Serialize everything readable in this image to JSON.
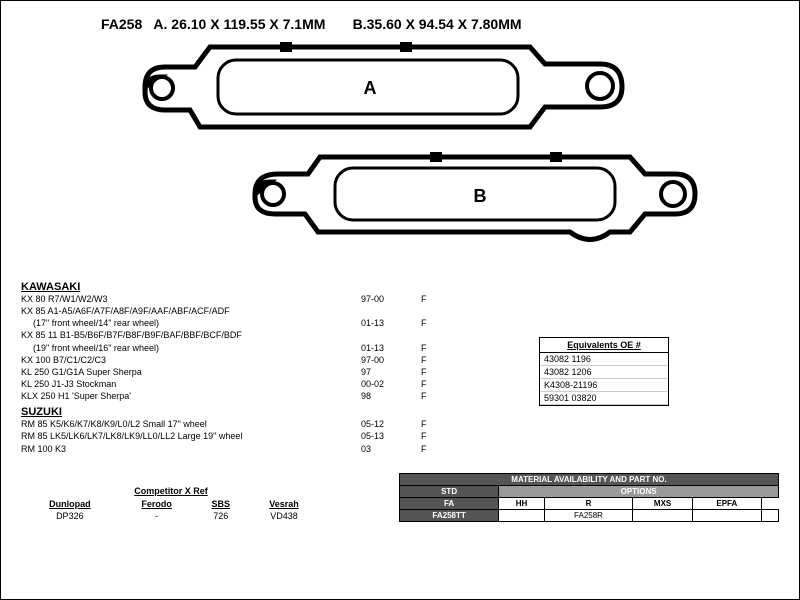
{
  "header": {
    "part_no": "FA258",
    "dim_a": "A. 26.10 X 119.55 X 7.1MM",
    "dim_b": "B.35.60 X 94.54 X 7.80MM"
  },
  "diagram": {
    "label_a": "A",
    "label_b": "B",
    "pad_a": {
      "fill": "#ffffff",
      "stroke": "#000000",
      "stroke_width": 4
    },
    "pad_b": {
      "fill": "#ffffff",
      "stroke": "#000000",
      "stroke_width": 4
    },
    "label_fontsize": 18
  },
  "fitments": {
    "brands": [
      {
        "name": "KAWASAKI",
        "rows": [
          {
            "model": "KX 80 R7/W1/W2/W3",
            "years": "97-00",
            "pos": "F"
          },
          {
            "model": "KX 85 A1-A5/A6F/A7F/A8F/A9F/AAF/ABF/ACF/ADF",
            "years": "",
            "pos": ""
          },
          {
            "model": "(17\" front wheel/14\" rear wheel)",
            "years": "01-13",
            "pos": "F",
            "indent": true
          },
          {
            "model": "KX 85 11 B1-B5/B6F/B7F/B8F/B9F/BAF/BBF/BCF/BDF",
            "years": "",
            "pos": ""
          },
          {
            "model": "(19\" front wheel/16\" rear wheel)",
            "years": "01-13",
            "pos": "F",
            "indent": true
          },
          {
            "model": "KX 100 B7/C1/C2/C3",
            "years": "97-00",
            "pos": "F"
          },
          {
            "model": "KL 250 G1/G1A Super Sherpa",
            "years": "97",
            "pos": "F"
          },
          {
            "model": "KL 250 J1-J3 Stockman",
            "years": "00-02",
            "pos": "F"
          },
          {
            "model": "KLX 250 H1 'Super Sherpa'",
            "years": "98",
            "pos": "F"
          }
        ]
      },
      {
        "name": "SUZUKI",
        "rows": [
          {
            "model": "RM 85 K5/K6/K7/K8/K9/L0/L2 Small 17\" wheel",
            "years": "05-12",
            "pos": "F"
          },
          {
            "model": "RM 85 LK5/LK6/LK7/LK8/LK9/LL0/LL2 Large 19\" wheel",
            "years": "05-13",
            "pos": "F"
          },
          {
            "model": "RM 100 K3",
            "years": "03",
            "pos": "F"
          }
        ]
      }
    ]
  },
  "oe": {
    "title": "Equivalents OE #",
    "rows": [
      "43082 1196",
      "43082 1206",
      "K4308-21196",
      "59301 03820"
    ]
  },
  "xref": {
    "title": "Competitor X Ref",
    "columns": [
      "Dunlopad",
      "Ferodo",
      "SBS",
      "Vesrah"
    ],
    "values": [
      "DP326",
      "-",
      "726",
      "VD438"
    ]
  },
  "material": {
    "title": "MATERIAL AVAILABILITY AND PART NO.",
    "std_label": "STD",
    "options_label": "OPTIONS",
    "option_cols": [
      "HH",
      "R",
      "MXS",
      "EPFA"
    ],
    "row_label": "FA",
    "cells": [
      "FA258TT",
      "",
      "FA258R",
      "",
      ""
    ]
  }
}
